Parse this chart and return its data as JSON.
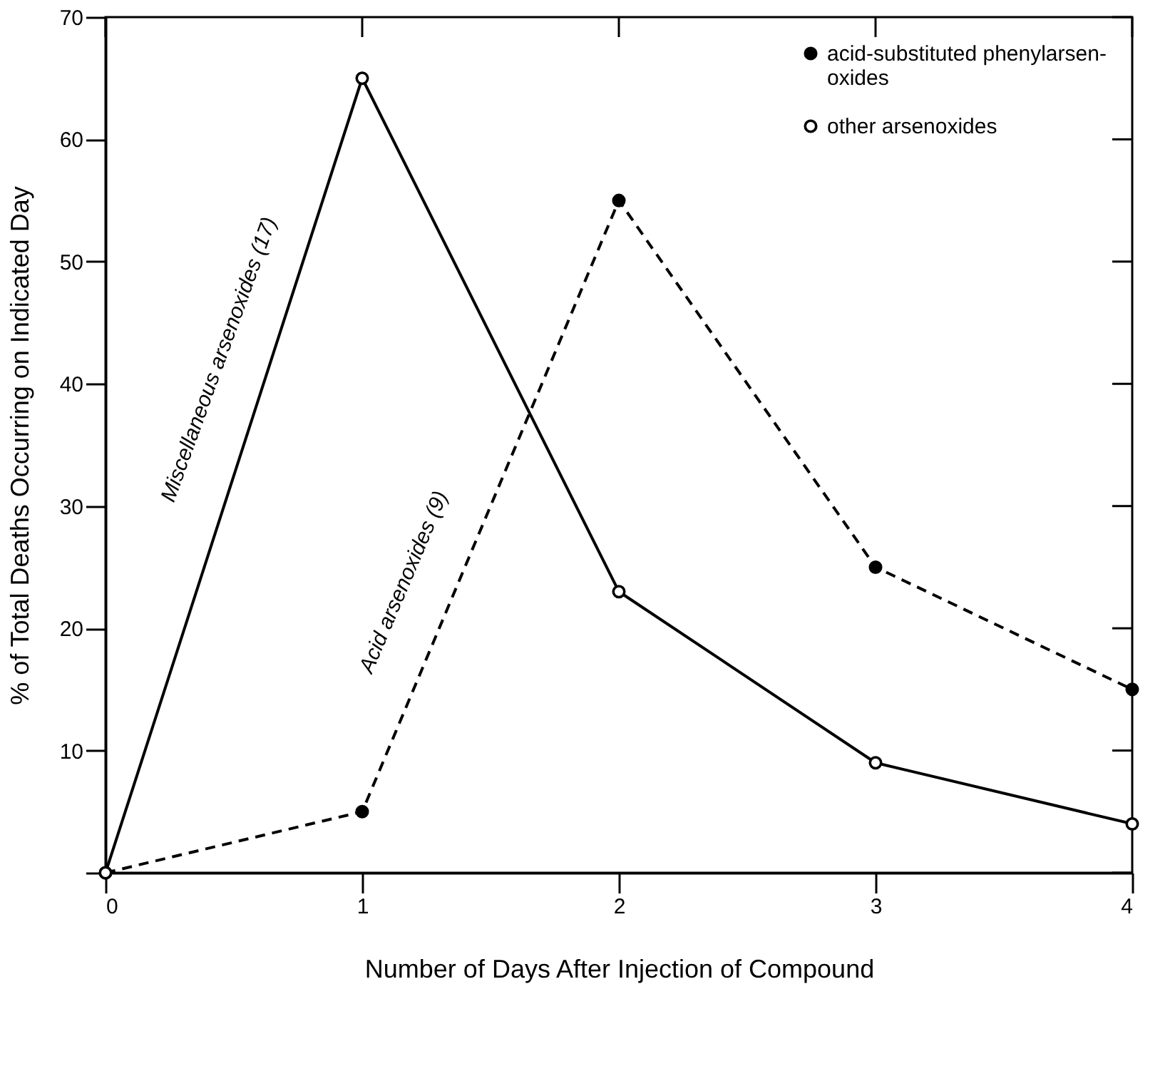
{
  "chart_data": {
    "type": "line",
    "xlabel": "Number of Days After Injection of Compound",
    "ylabel": "% of Total Deaths Occurring on Indicated Day",
    "x": [
      0,
      1,
      2,
      3,
      4
    ],
    "series": [
      {
        "name": "acid-substituted phenylarsen-\noxides",
        "color": "#000000",
        "values": [
          0,
          5,
          55,
          25,
          15
        ],
        "line_style": "dashed"
      },
      {
        "name": "other arsenoxides",
        "color": "#000000",
        "values": [
          0,
          65,
          23,
          9,
          4
        ],
        "line_style": "solid"
      }
    ],
    "xlim": [
      0,
      4
    ],
    "xticks": [
      0,
      1,
      2,
      3,
      4
    ],
    "ylim": [
      0,
      70
    ],
    "yticks": [
      {
        "value": 0,
        "label": null
      },
      10,
      20,
      30,
      40,
      50,
      60,
      70
    ],
    "marker": "circle",
    "legend": "top right",
    "grid": false,
    "annotations": [
      "Miscellaneous arsenoxides (17)",
      "Acid arsenoxides (9)"
    ]
  }
}
